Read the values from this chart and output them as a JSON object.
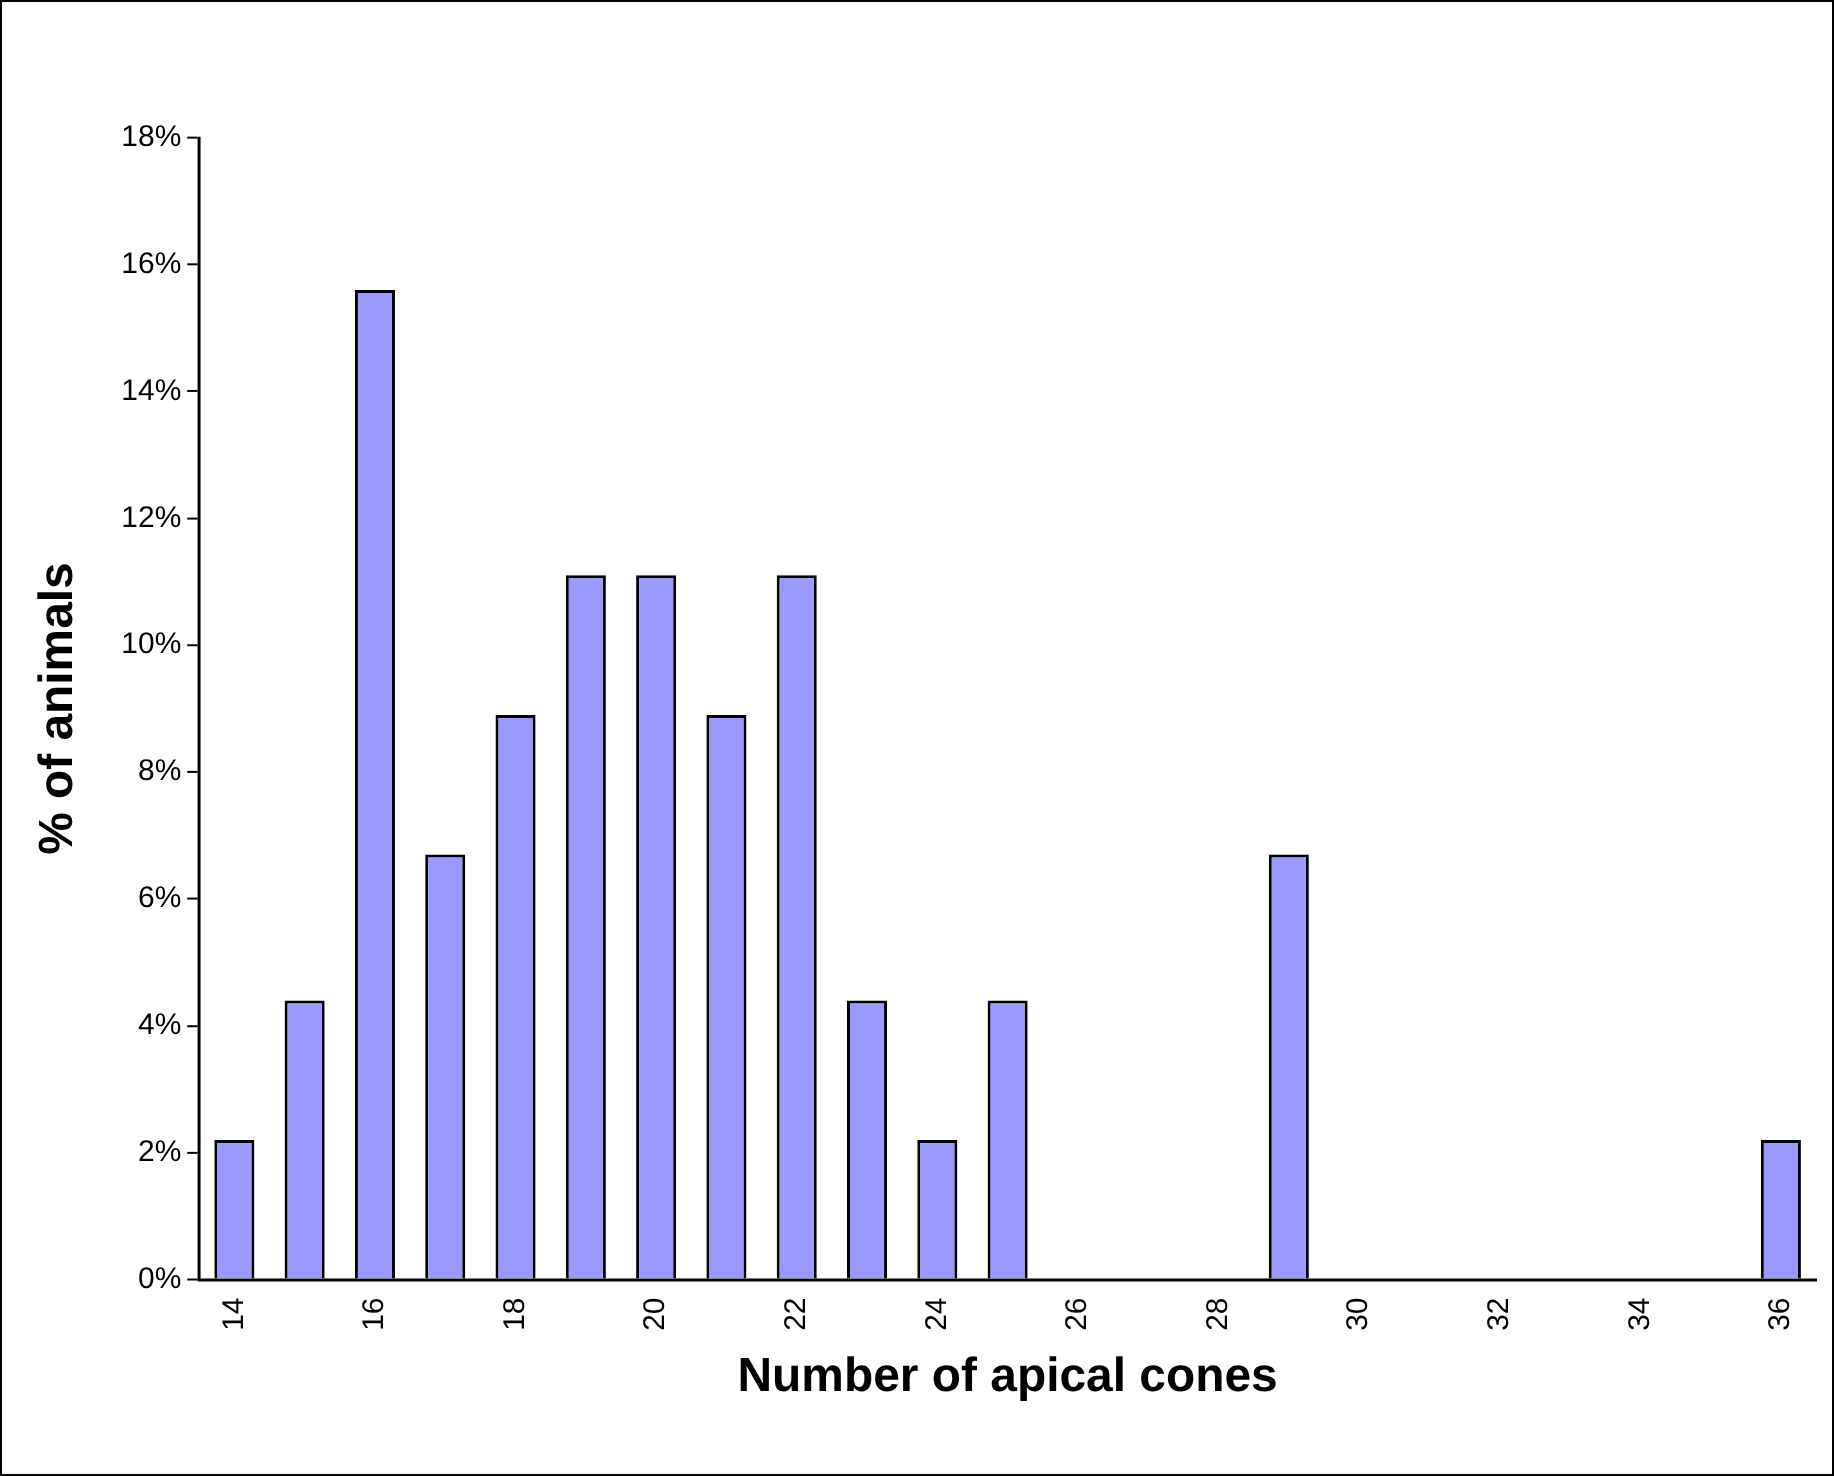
{
  "chart_data": {
    "type": "bar",
    "xlabel": "Number of apical cones",
    "ylabel": "% of animals",
    "categories": [
      "14",
      null,
      "16",
      null,
      "18",
      null,
      "20",
      null,
      "22",
      null,
      "24",
      null,
      "26",
      null,
      "28",
      null,
      "30",
      null,
      "32",
      null,
      "34",
      null,
      "36"
    ],
    "values": [
      2.2,
      4.4,
      15.6,
      6.7,
      8.9,
      11.1,
      11.1,
      8.9,
      11.1,
      4.4,
      2.2,
      4.4,
      0,
      0,
      0,
      6.7,
      0,
      0,
      0,
      0,
      0,
      0,
      2.2
    ],
    "color": "#9999ff",
    "ylim": [
      0,
      18
    ],
    "yticks": [
      {
        "value": 0,
        "label": "0%"
      },
      {
        "value": 2,
        "label": "2%"
      },
      {
        "value": 4,
        "label": "4%"
      },
      {
        "value": 6,
        "label": "6%"
      },
      {
        "value": 8,
        "label": "8%"
      },
      {
        "value": 10,
        "label": "10%"
      },
      {
        "value": 12,
        "label": "12%"
      },
      {
        "value": 14,
        "label": "14%"
      },
      {
        "value": 16,
        "label": "16%"
      },
      {
        "value": 18,
        "label": "18%"
      }
    ],
    "grid": false,
    "legend": false
  }
}
